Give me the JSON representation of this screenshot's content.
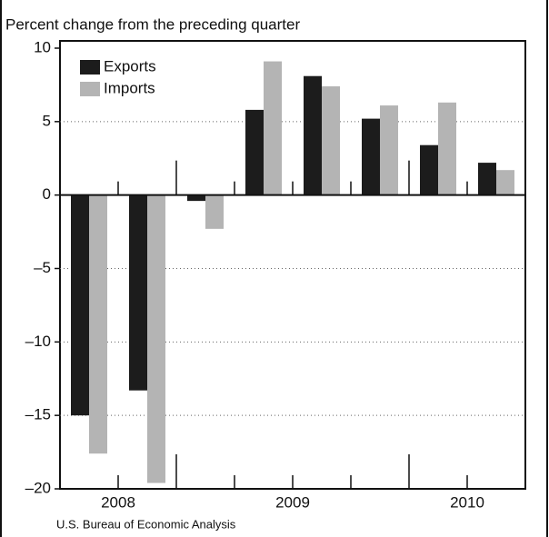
{
  "chart_data": {
    "type": "bar",
    "subtitle": "Percent change from the preceding quarter",
    "categories": [
      null,
      null,
      null,
      null,
      null,
      null,
      null,
      null
    ],
    "year_labels": [
      "2008",
      "2009",
      "2010"
    ],
    "series": [
      {
        "name": "Exports",
        "color": "#1c1c1c",
        "values": [
          -15,
          -13.3,
          -0.4,
          5.8,
          8.1,
          5.2,
          3.4,
          2.2
        ]
      },
      {
        "name": "Imports",
        "color": "#b4b4b4",
        "values": [
          -17.6,
          -19.6,
          -2.3,
          9.1,
          7.4,
          6.1,
          6.3,
          1.7
        ]
      }
    ],
    "ylim": [
      -20,
      10
    ],
    "yticks": [
      {
        "value": -20,
        "label": "–20"
      },
      {
        "value": -15,
        "label": "–15"
      },
      {
        "value": -10,
        "label": "–10"
      },
      {
        "value": -5,
        "label": "–5"
      },
      0,
      5,
      10
    ],
    "grid": true,
    "source": "U.S. Bureau of Economic Analysis"
  }
}
